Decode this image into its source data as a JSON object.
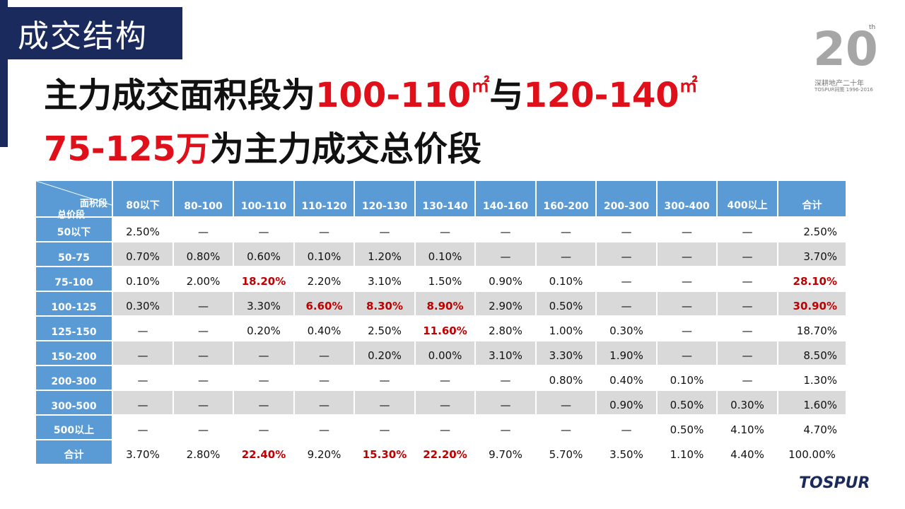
{
  "section_title": "成交结构",
  "headline": {
    "line1": {
      "text_a": "主力成交面积段为",
      "range_a": "100-110",
      "unit_a": "㎡",
      "text_b": "与",
      "range_b": "120-140",
      "unit_b": "㎡"
    },
    "line2": {
      "range": "75-125万",
      "text": "为主力成交总价段"
    }
  },
  "logo": {
    "big": "20",
    "th": "th",
    "sub": "深耕地产二十年",
    "sub2": "TOSPUR同策 1996-2016"
  },
  "brand": "TOSPUR",
  "table": {
    "corner_top": "面积段",
    "corner_bottom": "总价段",
    "columns": [
      "80以下",
      "80-100",
      "100-110",
      "110-120",
      "120-130",
      "130-140",
      "140-160",
      "160-200",
      "200-300",
      "300-400",
      "400以上",
      "合计"
    ],
    "rows": [
      {
        "label": "50以下",
        "cells": [
          "2.50%",
          "—",
          "—",
          "—",
          "—",
          "—",
          "—",
          "—",
          "—",
          "—",
          "—",
          "2.50%"
        ]
      },
      {
        "label": "50-75",
        "cells": [
          "0.70%",
          "0.80%",
          "0.60%",
          "0.10%",
          "1.20%",
          "0.10%",
          "—",
          "—",
          "—",
          "—",
          "—",
          "3.70%"
        ]
      },
      {
        "label": "75-100",
        "cells": [
          "0.10%",
          "2.00%",
          "18.20%",
          "2.20%",
          "3.10%",
          "1.50%",
          "0.90%",
          "0.10%",
          "—",
          "—",
          "—",
          "28.10%"
        ]
      },
      {
        "label": "100-125",
        "cells": [
          "0.30%",
          "—",
          "3.30%",
          "6.60%",
          "8.30%",
          "8.90%",
          "2.90%",
          "0.50%",
          "—",
          "—",
          "—",
          "30.90%"
        ]
      },
      {
        "label": "125-150",
        "cells": [
          "—",
          "—",
          "0.20%",
          "0.40%",
          "2.50%",
          "11.60%",
          "2.80%",
          "1.00%",
          "0.30%",
          "—",
          "—",
          "18.70%"
        ]
      },
      {
        "label": "150-200",
        "cells": [
          "—",
          "—",
          "—",
          "—",
          "0.20%",
          "0.00%",
          "3.10%",
          "3.30%",
          "1.90%",
          "—",
          "—",
          "8.50%"
        ]
      },
      {
        "label": "200-300",
        "cells": [
          "—",
          "—",
          "—",
          "—",
          "—",
          "—",
          "—",
          "0.80%",
          "0.40%",
          "0.10%",
          "—",
          "1.30%"
        ]
      },
      {
        "label": "300-500",
        "cells": [
          "—",
          "—",
          "—",
          "—",
          "—",
          "—",
          "—",
          "—",
          "0.90%",
          "0.50%",
          "0.30%",
          "1.60%"
        ]
      },
      {
        "label": "500以上",
        "cells": [
          "—",
          "—",
          "—",
          "—",
          "—",
          "—",
          "—",
          "—",
          "—",
          "0.50%",
          "4.10%",
          "4.70%"
        ]
      }
    ],
    "total": {
      "label": "合计",
      "cells": [
        "3.70%",
        "2.80%",
        "22.40%",
        "9.20%",
        "15.30%",
        "22.20%",
        "9.70%",
        "5.70%",
        "3.50%",
        "1.10%",
        "4.40%",
        "100.00%"
      ]
    },
    "highlighted": [
      [
        2,
        2
      ],
      [
        2,
        11
      ],
      [
        3,
        3
      ],
      [
        3,
        4
      ],
      [
        3,
        5
      ],
      [
        3,
        11
      ],
      [
        4,
        5
      ]
    ],
    "highlighted_total": [
      2,
      4,
      5
    ],
    "colors": {
      "header_blue": "#5b9bd5",
      "row_gray": "#d9d9d9",
      "highlight_red": "#c00000",
      "title_navy": "#1b2a5c"
    }
  }
}
